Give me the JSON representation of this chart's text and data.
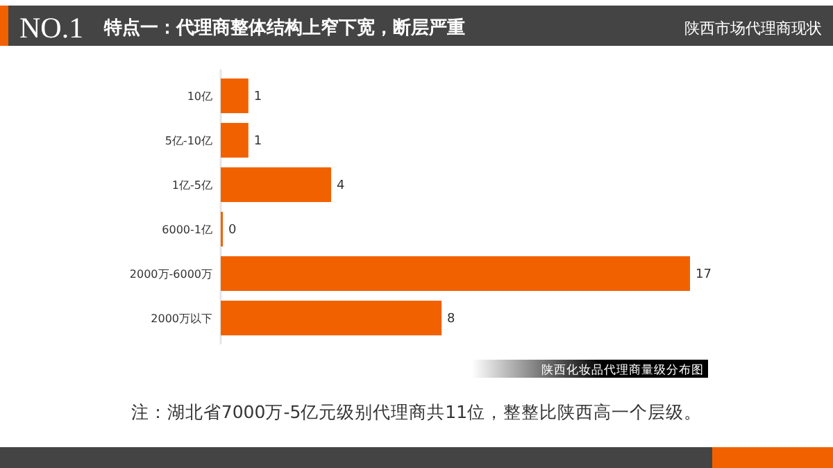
{
  "chart_data": {
    "type": "bar",
    "orientation": "horizontal",
    "title": "特点一：代理商整体结构上窄下宽，断层严重",
    "subtitle": "陕西市场代理商现状",
    "categories": [
      "10亿",
      "5亿-10亿",
      "1亿-5亿",
      "6000-1亿",
      "2000万-6000万",
      "2000万以下"
    ],
    "values": [
      1,
      1,
      4,
      0,
      17,
      8
    ],
    "color": "#f26100",
    "data_labels": true,
    "grid": false,
    "annotations": [
      "NO.1",
      "陕西化妆品代理商量级分布图",
      "注：湖北省7000万-5亿元级别代理商共11位，整整比陕西高一个层级。"
    ]
  }
}
